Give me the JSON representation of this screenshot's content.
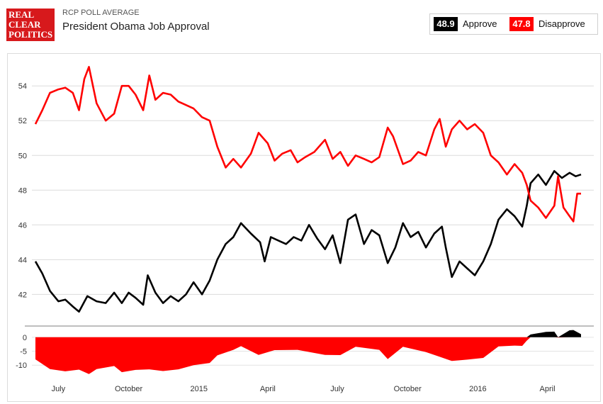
{
  "header": {
    "logo_lines": [
      "REAL",
      "CLEAR",
      "POLITICS"
    ],
    "source_label": "RCP POLL AVERAGE",
    "title": "President Obama Job Approval"
  },
  "legend": {
    "approve": {
      "value": "48.9",
      "label": "Approve",
      "color": "#000000"
    },
    "disapprove": {
      "value": "47.8",
      "label": "Disapprove",
      "color": "#ff0000"
    }
  },
  "chart_data": [
    {
      "type": "line",
      "title": "President Obama Job Approval",
      "x_tick_labels": [
        "July",
        "October",
        "2015",
        "April",
        "July",
        "October",
        "2016",
        "April"
      ],
      "x_ticks": [
        "2014-07",
        "2014-10",
        "2015-01",
        "2015-04",
        "2015-07",
        "2015-10",
        "2016-01",
        "2016-04"
      ],
      "x_range": [
        "2014-06-01",
        "2016-05-15"
      ],
      "ylim": [
        40.3,
        55.6
      ],
      "y_ticks": [
        42,
        44,
        46,
        48,
        50,
        52,
        54
      ],
      "grid": true,
      "series": [
        {
          "name": "Approve",
          "color": "#000000",
          "points": [
            [
              "2014-06-01",
              43.9
            ],
            [
              "2014-06-10",
              43.2
            ],
            [
              "2014-06-20",
              42.2
            ],
            [
              "2014-07-01",
              41.6
            ],
            [
              "2014-07-10",
              41.7
            ],
            [
              "2014-07-20",
              41.3
            ],
            [
              "2014-07-28",
              41.0
            ],
            [
              "2014-08-08",
              41.9
            ],
            [
              "2014-08-20",
              41.6
            ],
            [
              "2014-09-01",
              41.5
            ],
            [
              "2014-09-12",
              42.1
            ],
            [
              "2014-09-22",
              41.5
            ],
            [
              "2014-10-01",
              42.1
            ],
            [
              "2014-10-10",
              41.8
            ],
            [
              "2014-10-20",
              41.4
            ],
            [
              "2014-10-26",
              43.1
            ],
            [
              "2014-11-05",
              42.1
            ],
            [
              "2014-11-15",
              41.5
            ],
            [
              "2014-11-25",
              41.9
            ],
            [
              "2014-12-05",
              41.6
            ],
            [
              "2014-12-15",
              42.0
            ],
            [
              "2014-12-25",
              42.7
            ],
            [
              "2015-01-05",
              42.0
            ],
            [
              "2015-01-15",
              42.8
            ],
            [
              "2015-01-25",
              44.0
            ],
            [
              "2015-02-05",
              44.9
            ],
            [
              "2015-02-15",
              45.3
            ],
            [
              "2015-02-25",
              46.1
            ],
            [
              "2015-03-10",
              45.5
            ],
            [
              "2015-03-22",
              45.0
            ],
            [
              "2015-03-28",
              43.9
            ],
            [
              "2015-04-05",
              45.3
            ],
            [
              "2015-04-15",
              45.1
            ],
            [
              "2015-04-25",
              44.9
            ],
            [
              "2015-05-05",
              45.3
            ],
            [
              "2015-05-15",
              45.1
            ],
            [
              "2015-05-25",
              46.0
            ],
            [
              "2015-06-05",
              45.2
            ],
            [
              "2015-06-15",
              44.6
            ],
            [
              "2015-06-25",
              45.4
            ],
            [
              "2015-07-05",
              43.8
            ],
            [
              "2015-07-15",
              46.3
            ],
            [
              "2015-07-25",
              46.6
            ],
            [
              "2015-08-05",
              44.9
            ],
            [
              "2015-08-15",
              45.7
            ],
            [
              "2015-08-25",
              45.4
            ],
            [
              "2015-09-05",
              43.8
            ],
            [
              "2015-09-15",
              44.7
            ],
            [
              "2015-09-25",
              46.1
            ],
            [
              "2015-10-05",
              45.3
            ],
            [
              "2015-10-15",
              45.6
            ],
            [
              "2015-10-25",
              44.7
            ],
            [
              "2015-11-05",
              45.5
            ],
            [
              "2015-11-15",
              45.9
            ],
            [
              "2015-11-20",
              44.7
            ],
            [
              "2015-11-28",
              43.0
            ],
            [
              "2015-12-08",
              43.9
            ],
            [
              "2015-12-18",
              43.5
            ],
            [
              "2015-12-28",
              43.1
            ],
            [
              "2016-01-08",
              43.9
            ],
            [
              "2016-01-18",
              44.9
            ],
            [
              "2016-01-28",
              46.3
            ],
            [
              "2016-02-08",
              46.9
            ],
            [
              "2016-02-18",
              46.5
            ],
            [
              "2016-02-28",
              45.9
            ],
            [
              "2016-03-05",
              47.1
            ],
            [
              "2016-03-10",
              48.4
            ],
            [
              "2016-03-20",
              48.9
            ],
            [
              "2016-03-30",
              48.3
            ],
            [
              "2016-04-10",
              49.1
            ],
            [
              "2016-04-20",
              48.7
            ],
            [
              "2016-04-30",
              49.0
            ],
            [
              "2016-05-08",
              48.8
            ],
            [
              "2016-05-15",
              48.9
            ]
          ]
        },
        {
          "name": "Disapprove",
          "color": "#ff0000",
          "points": [
            [
              "2014-06-01",
              51.8
            ],
            [
              "2014-06-10",
              52.6
            ],
            [
              "2014-06-20",
              53.6
            ],
            [
              "2014-07-01",
              53.8
            ],
            [
              "2014-07-10",
              53.9
            ],
            [
              "2014-07-20",
              53.6
            ],
            [
              "2014-07-28",
              52.6
            ],
            [
              "2014-08-04",
              54.4
            ],
            [
              "2014-08-10",
              55.1
            ],
            [
              "2014-08-20",
              53.0
            ],
            [
              "2014-09-01",
              52.0
            ],
            [
              "2014-09-12",
              52.4
            ],
            [
              "2014-09-22",
              54.0
            ],
            [
              "2014-10-01",
              54.0
            ],
            [
              "2014-10-10",
              53.5
            ],
            [
              "2014-10-20",
              52.6
            ],
            [
              "2014-10-28",
              54.6
            ],
            [
              "2014-11-05",
              53.2
            ],
            [
              "2014-11-15",
              53.6
            ],
            [
              "2014-11-25",
              53.5
            ],
            [
              "2014-12-05",
              53.1
            ],
            [
              "2014-12-15",
              52.9
            ],
            [
              "2014-12-25",
              52.7
            ],
            [
              "2015-01-05",
              52.2
            ],
            [
              "2015-01-15",
              52.0
            ],
            [
              "2015-01-25",
              50.5
            ],
            [
              "2015-02-05",
              49.3
            ],
            [
              "2015-02-15",
              49.8
            ],
            [
              "2015-02-25",
              49.3
            ],
            [
              "2015-03-10",
              50.1
            ],
            [
              "2015-03-20",
              51.3
            ],
            [
              "2015-04-01",
              50.7
            ],
            [
              "2015-04-10",
              49.7
            ],
            [
              "2015-04-20",
              50.1
            ],
            [
              "2015-05-01",
              50.3
            ],
            [
              "2015-05-10",
              49.6
            ],
            [
              "2015-05-20",
              49.9
            ],
            [
              "2015-06-01",
              50.2
            ],
            [
              "2015-06-15",
              50.9
            ],
            [
              "2015-06-25",
              49.8
            ],
            [
              "2015-07-05",
              50.2
            ],
            [
              "2015-07-15",
              49.4
            ],
            [
              "2015-07-25",
              50.0
            ],
            [
              "2015-08-05",
              49.8
            ],
            [
              "2015-08-15",
              49.6
            ],
            [
              "2015-08-25",
              49.9
            ],
            [
              "2015-09-05",
              51.6
            ],
            [
              "2015-09-12",
              51.1
            ],
            [
              "2015-09-25",
              49.5
            ],
            [
              "2015-10-05",
              49.7
            ],
            [
              "2015-10-15",
              50.2
            ],
            [
              "2015-10-25",
              50.0
            ],
            [
              "2015-11-05",
              51.5
            ],
            [
              "2015-11-12",
              52.1
            ],
            [
              "2015-11-20",
              50.5
            ],
            [
              "2015-11-28",
              51.5
            ],
            [
              "2015-12-08",
              52.0
            ],
            [
              "2015-12-18",
              51.5
            ],
            [
              "2015-12-28",
              51.8
            ],
            [
              "2016-01-08",
              51.3
            ],
            [
              "2016-01-18",
              50.0
            ],
            [
              "2016-01-28",
              49.6
            ],
            [
              "2016-02-08",
              48.9
            ],
            [
              "2016-02-18",
              49.5
            ],
            [
              "2016-02-28",
              49.0
            ],
            [
              "2016-03-05",
              48.3
            ],
            [
              "2016-03-10",
              47.4
            ],
            [
              "2016-03-20",
              47.0
            ],
            [
              "2016-03-30",
              46.4
            ],
            [
              "2016-04-10",
              47.1
            ],
            [
              "2016-04-15",
              48.8
            ],
            [
              "2016-04-22",
              47.0
            ],
            [
              "2016-04-30",
              46.5
            ],
            [
              "2016-05-05",
              46.2
            ],
            [
              "2016-05-10",
              47.8
            ],
            [
              "2016-05-15",
              47.8
            ]
          ]
        }
      ]
    },
    {
      "type": "area",
      "title": "",
      "ylim": [
        -14,
        3
      ],
      "y_ticks": [
        0,
        -5,
        -10
      ],
      "grid": true,
      "series": [
        {
          "name": "Spread",
          "color_positive": "#000000",
          "color_negative": "#ff0000",
          "points": [
            [
              "2014-06-01",
              -7.9
            ],
            [
              "2014-06-20",
              -11.4
            ],
            [
              "2014-07-10",
              -12.2
            ],
            [
              "2014-07-28",
              -11.6
            ],
            [
              "2014-08-10",
              -13.2
            ],
            [
              "2014-08-20",
              -11.4
            ],
            [
              "2014-09-12",
              -10.3
            ],
            [
              "2014-09-22",
              -12.5
            ],
            [
              "2014-10-10",
              -11.7
            ],
            [
              "2014-10-28",
              -11.5
            ],
            [
              "2014-11-15",
              -12.1
            ],
            [
              "2014-12-05",
              -11.5
            ],
            [
              "2014-12-25",
              -10.0
            ],
            [
              "2015-01-15",
              -9.2
            ],
            [
              "2015-01-25",
              -6.5
            ],
            [
              "2015-02-15",
              -4.5
            ],
            [
              "2015-02-25",
              -3.2
            ],
            [
              "2015-03-20",
              -6.3
            ],
            [
              "2015-04-10",
              -4.6
            ],
            [
              "2015-05-10",
              -4.5
            ],
            [
              "2015-06-15",
              -6.3
            ],
            [
              "2015-07-05",
              -6.4
            ],
            [
              "2015-07-25",
              -3.4
            ],
            [
              "2015-08-25",
              -4.5
            ],
            [
              "2015-09-05",
              -7.8
            ],
            [
              "2015-09-25",
              -3.4
            ],
            [
              "2015-10-25",
              -5.3
            ],
            [
              "2015-11-12",
              -7.0
            ],
            [
              "2015-11-28",
              -8.5
            ],
            [
              "2015-12-18",
              -8.0
            ],
            [
              "2016-01-08",
              -7.4
            ],
            [
              "2016-01-28",
              -3.3
            ],
            [
              "2016-02-18",
              -3.0
            ],
            [
              "2016-02-28",
              -3.1
            ],
            [
              "2016-03-05",
              -1.2
            ],
            [
              "2016-03-10",
              1.0
            ],
            [
              "2016-03-30",
              1.9
            ],
            [
              "2016-04-10",
              2.0
            ],
            [
              "2016-04-15",
              -0.1
            ],
            [
              "2016-04-30",
              2.5
            ],
            [
              "2016-05-05",
              2.6
            ],
            [
              "2016-05-15",
              1.1
            ]
          ]
        }
      ]
    }
  ]
}
